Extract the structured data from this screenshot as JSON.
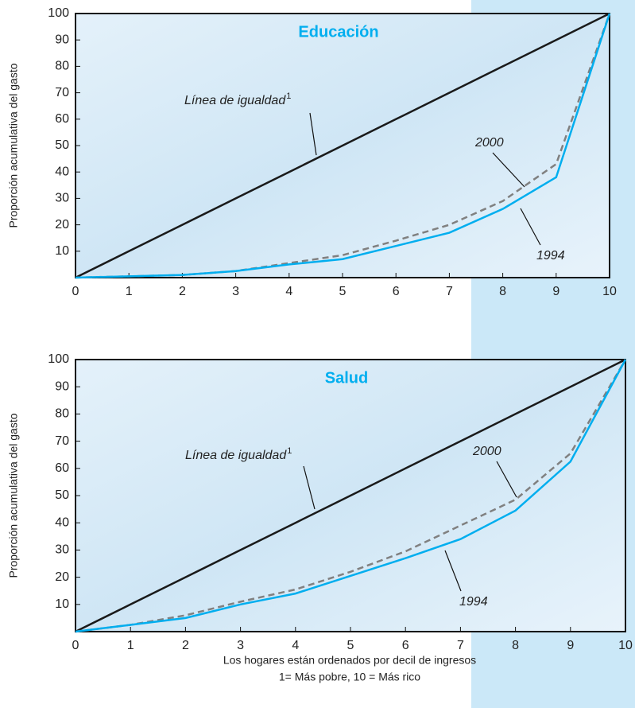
{
  "chart_data": [
    {
      "type": "line",
      "title": "Educación",
      "y_label": "Proporción acumulativa del gasto",
      "x": [
        0,
        1,
        2,
        3,
        4,
        5,
        6,
        7,
        8,
        9,
        10
      ],
      "series": [
        {
          "name": "Línea de igualdad",
          "color": "#1a1a1a",
          "dashed": false,
          "values": [
            0,
            10,
            20,
            30,
            40,
            50,
            60,
            70,
            80,
            90,
            100
          ]
        },
        {
          "name": "2000",
          "color": "#808080",
          "dashed": true,
          "values": [
            0,
            0.5,
            1,
            2.5,
            5.5,
            8.5,
            14,
            20,
            29,
            43,
            100
          ]
        },
        {
          "name": "1994",
          "color": "#00aeef",
          "dashed": false,
          "values": [
            0,
            0.5,
            1,
            2.5,
            5,
            7,
            12,
            17,
            26,
            38,
            100
          ]
        }
      ],
      "equality_footnote": "1",
      "xlim": [
        0,
        10
      ],
      "xticks": [
        0,
        1,
        2,
        3,
        4,
        5,
        6,
        7,
        8,
        9,
        10
      ],
      "ylim": [
        0,
        100
      ],
      "yticks": [
        10,
        20,
        30,
        40,
        50,
        60,
        70,
        80,
        90,
        100
      ]
    },
    {
      "type": "line",
      "title": "Salud",
      "y_label": "Proporción acumulativa del gasto",
      "x": [
        0,
        1,
        2,
        3,
        4,
        5,
        6,
        7,
        8,
        9,
        10
      ],
      "series": [
        {
          "name": "Línea de igualdad",
          "color": "#1a1a1a",
          "dashed": false,
          "values": [
            0,
            10,
            20,
            30,
            40,
            50,
            60,
            70,
            80,
            90,
            100
          ]
        },
        {
          "name": "2000",
          "color": "#808080",
          "dashed": true,
          "values": [
            0,
            2.5,
            6,
            11,
            15.5,
            22,
            29.5,
            39,
            48.5,
            65.5,
            100
          ]
        },
        {
          "name": "1994",
          "color": "#00aeef",
          "dashed": false,
          "values": [
            0,
            2.5,
            5,
            10,
            14,
            20.5,
            27,
            34,
            44.5,
            62.5,
            100
          ]
        }
      ],
      "equality_footnote": "1",
      "xlim": [
        0,
        10
      ],
      "xticks": [
        0,
        1,
        2,
        3,
        4,
        5,
        6,
        7,
        8,
        9,
        10
      ],
      "ylim": [
        0,
        100
      ],
      "yticks": [
        10,
        20,
        30,
        40,
        50,
        60,
        70,
        80,
        90,
        100
      ]
    }
  ],
  "x_label_lines": [
    "Los hogares están ordenados por decil de ingresos",
    "1= Más pobre, 10 = Más rico"
  ]
}
